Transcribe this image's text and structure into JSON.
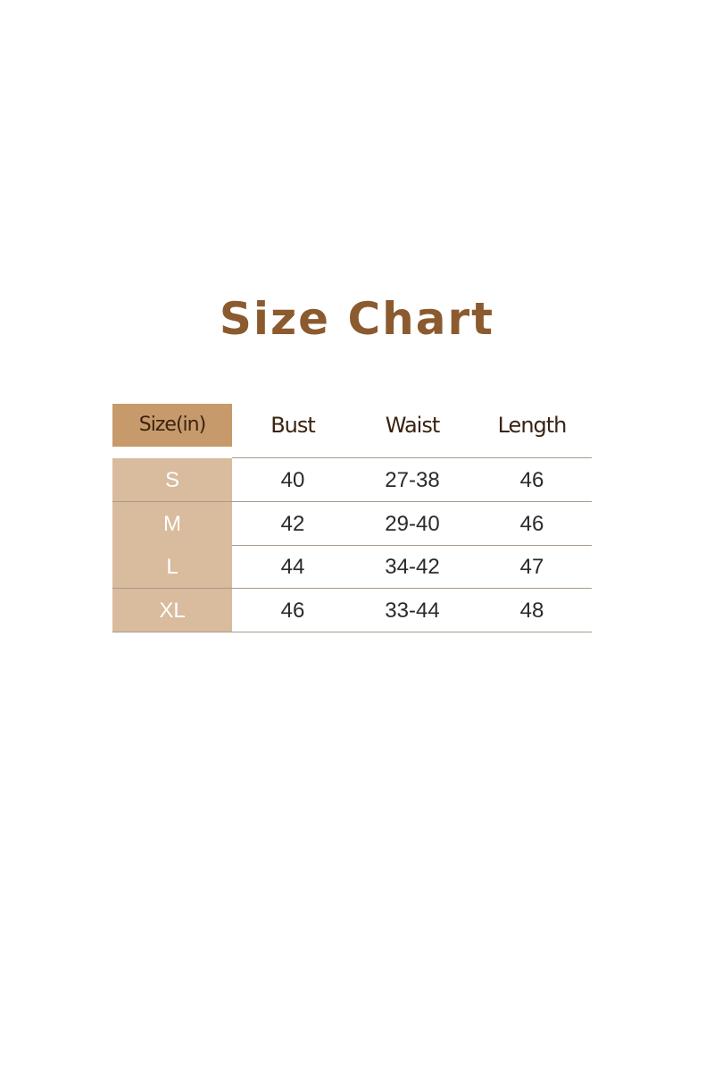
{
  "title": "Size Chart",
  "table": {
    "headers": [
      "Size(in)",
      "Bust",
      "Waist",
      "Length"
    ],
    "rows": [
      [
        "S",
        "40",
        "27-38",
        "46"
      ],
      [
        "M",
        "42",
        "29-40",
        "46"
      ],
      [
        "L",
        "44",
        "34-42",
        "47"
      ],
      [
        "XL",
        "46",
        "33-44",
        "48"
      ]
    ]
  },
  "colors": {
    "title": "#8B5A2E",
    "header_size_cell": "#C69A6B",
    "size_column": "#D9BB9D",
    "row_divider": "#A89A8C"
  }
}
